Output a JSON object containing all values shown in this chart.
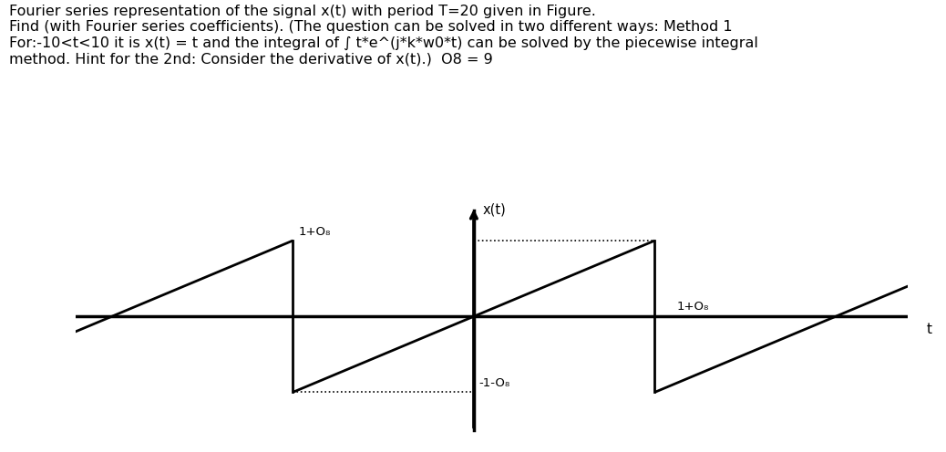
{
  "title_text": "Fourier series representation of the signal x(t) with period T=20 given in Figure.\nFind (with Fourier series coefficients). (The question can be solved in two different ways: Method 1\nFor:-10<t<10 it is x(t) = t and the integral of ∫ t*e^(j*k*w0*t) can be solved by the piecewise integral\nmethod. Hint for the 2nd: Consider the derivative of x(t).)  O8 = 9",
  "ylabel": "x(t)",
  "xlabel": "t",
  "label_pos_left": "1+O₈",
  "label_neg_left": "-1-O₈",
  "label_pos_right": "1+O₈",
  "label_neg_right": "-1-O₈",
  "bg_color": "#ffffff",
  "line_color": "#000000",
  "title_fontsize": 11.5,
  "label_fontsize": 9.5,
  "fig_width": 10.38,
  "fig_height": 4.96,
  "dpi": 100,
  "xlim_min": -22,
  "xlim_max": 24,
  "ylim_min": -1.55,
  "ylim_max": 1.55,
  "amplitude": 1.0,
  "period": 20,
  "periods": [
    -2,
    -1,
    0,
    1,
    2
  ]
}
